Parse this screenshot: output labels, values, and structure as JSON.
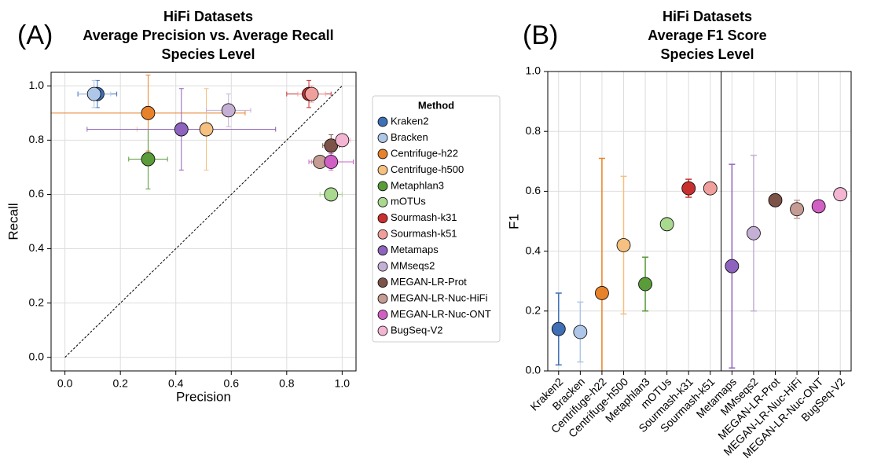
{
  "chart_data": [
    {
      "type": "scatter",
      "panel_label": "(A)",
      "title_lines": [
        "HiFi Datasets",
        "Average Precision vs. Average Recall",
        "Species Level"
      ],
      "xlabel": "Precision",
      "ylabel": "Recall",
      "xlim": [
        -0.05,
        1.05
      ],
      "ylim": [
        -0.05,
        1.05
      ],
      "xticks": [
        {
          "value": 0,
          "label": "0.0"
        },
        0.2,
        0.4,
        0.6,
        0.8,
        {
          "value": 1,
          "label": "1.0"
        }
      ],
      "yticks": [
        {
          "value": 0,
          "label": "0.0"
        },
        0.2,
        0.4,
        0.6,
        0.8,
        {
          "value": 1,
          "label": "1.0"
        }
      ],
      "grid": true,
      "identity_line": true,
      "legend": {
        "title": "Method",
        "position": "right-outside"
      },
      "series": [
        {
          "name": "Kraken2",
          "color": "#3f6fb5",
          "x": [
            0.117
          ],
          "y": [
            0.97
          ],
          "xerr": [
            0.07
          ],
          "yerr": [
            0.05
          ]
        },
        {
          "name": "Bracken",
          "color": "#aec7e8",
          "x": [
            0.105
          ],
          "y": [
            0.97
          ],
          "xerr": [
            0.06
          ],
          "yerr": [
            0.05
          ]
        },
        {
          "name": "Centrifuge-h22",
          "color": "#e8822a",
          "x": [
            0.3
          ],
          "y": [
            0.9
          ],
          "xerr": [
            0.35
          ],
          "yerr": [
            0.14
          ]
        },
        {
          "name": "Centrifuge-h500",
          "color": "#f5c080",
          "x": [
            0.51
          ],
          "y": [
            0.84
          ],
          "xerr": [
            0.25
          ],
          "yerr": [
            0.15
          ]
        },
        {
          "name": "Metaphlan3",
          "color": "#5a9b3a",
          "x": [
            0.3
          ],
          "y": [
            0.73
          ],
          "xerr": [
            0.07
          ],
          "yerr": [
            0.11
          ]
        },
        {
          "name": "mOTUs",
          "color": "#a8d98e",
          "x": [
            0.96
          ],
          "y": [
            0.6
          ],
          "xerr": [
            0.04
          ],
          "yerr": [
            0
          ]
        },
        {
          "name": "Sourmash-k31",
          "color": "#c8302f",
          "x": [
            0.88
          ],
          "y": [
            0.97
          ],
          "xerr": [
            0.08
          ],
          "yerr": [
            0.05
          ]
        },
        {
          "name": "Sourmash-k51",
          "color": "#f0a09c",
          "x": [
            0.89
          ],
          "y": [
            0.97
          ],
          "xerr": [
            0.05
          ],
          "yerr": [
            0.03
          ]
        },
        {
          "name": "Metamaps",
          "color": "#8e63bd",
          "x": [
            0.42
          ],
          "y": [
            0.84
          ],
          "xerr": [
            0.34
          ],
          "yerr": [
            0.15
          ]
        },
        {
          "name": "MMseqs2",
          "color": "#c5b0d5",
          "x": [
            0.59
          ],
          "y": [
            0.91
          ],
          "xerr": [
            0.08
          ],
          "yerr": [
            0.06
          ]
        },
        {
          "name": "MEGAN-LR-Prot",
          "color": "#7d5248",
          "x": [
            0.96
          ],
          "y": [
            0.78
          ],
          "xerr": [
            0.03
          ],
          "yerr": [
            0.04
          ]
        },
        {
          "name": "MEGAN-LR-Nuc-HiFi",
          "color": "#c49c94",
          "x": [
            0.92
          ],
          "y": [
            0.72
          ],
          "xerr": [
            0.03
          ],
          "yerr": [
            0.02
          ]
        },
        {
          "name": "MEGAN-LR-Nuc-ONT",
          "color": "#d160c4",
          "x": [
            0.96
          ],
          "y": [
            0.72
          ],
          "xerr": [
            0.08
          ],
          "yerr": [
            0.03
          ]
        },
        {
          "name": "BugSeq-V2",
          "color": "#f3b6d2",
          "x": [
            1.0
          ],
          "y": [
            0.8
          ],
          "xerr": [
            0.03
          ],
          "yerr": [
            0.02
          ]
        }
      ]
    },
    {
      "type": "dot",
      "panel_label": "(B)",
      "title_lines": [
        "HiFi Datasets",
        "Average F1 Score",
        "Species Level"
      ],
      "ylabel": "F1",
      "ylim": [
        0,
        1
      ],
      "yticks": [
        {
          "value": 0,
          "label": "0.0"
        },
        0.2,
        0.4,
        0.6,
        0.8,
        {
          "value": 1,
          "label": "1.0"
        }
      ],
      "grid": true,
      "separator_before": "Metamaps",
      "categories": [
        "Kraken2",
        "Bracken",
        "Centrifuge-h22",
        "Centrifuge-h500",
        "Metaphlan3",
        "mOTUs",
        "Sourmash-k31",
        "Sourmash-k51",
        "Metamaps",
        "MMseqs2",
        "MEGAN-LR-Prot",
        "MEGAN-LR-Nuc-HiFi",
        "MEGAN-LR-Nuc-ONT",
        "BugSeq-V2"
      ],
      "values": [
        0.14,
        0.13,
        0.26,
        0.42,
        0.29,
        0.49,
        0.61,
        0.61,
        0.35,
        0.46,
        0.57,
        0.54,
        0.55,
        0.59
      ],
      "errors": [
        0.12,
        0.1,
        0.45,
        0.23,
        0.09,
        0,
        0.03,
        0,
        0.34,
        0.26,
        0,
        0.03,
        0,
        0
      ],
      "colors": [
        "#3f6fb5",
        "#aec7e8",
        "#e8822a",
        "#f5c080",
        "#5a9b3a",
        "#a8d98e",
        "#c8302f",
        "#f0a09c",
        "#8e63bd",
        "#c5b0d5",
        "#7d5248",
        "#c49c94",
        "#d160c4",
        "#f3b6d2"
      ]
    }
  ]
}
